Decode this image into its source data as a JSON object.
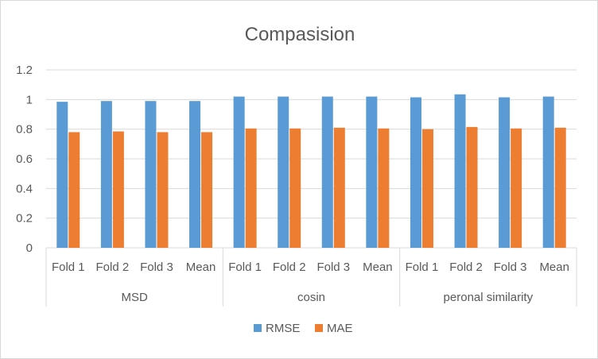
{
  "chart_data": {
    "type": "bar",
    "title": "Compasision",
    "xlabel": "",
    "ylabel": "",
    "ylim": [
      0,
      1.2
    ],
    "yticks": [
      "0",
      "0.2",
      "0.4",
      "0.6",
      "0.8",
      "1",
      "1.2"
    ],
    "grid": true,
    "legend": "bottom",
    "groups": [
      {
        "label": "MSD",
        "categories": [
          "Fold 1",
          "Fold 2",
          "Fold 3",
          "Mean"
        ]
      },
      {
        "label": "cosin",
        "categories": [
          "Fold 1",
          "Fold 2",
          "Fold 3",
          "Mean"
        ]
      },
      {
        "label": "peronal similarity",
        "categories": [
          "Fold 1",
          "Fold 2",
          "Fold 3",
          "Mean"
        ]
      }
    ],
    "series": [
      {
        "name": "RMSE",
        "color": "#5b9bd5",
        "values": [
          0.985,
          0.99,
          0.99,
          0.99,
          1.02,
          1.02,
          1.02,
          1.02,
          1.015,
          1.035,
          1.015,
          1.02
        ]
      },
      {
        "name": "MAE",
        "color": "#ed7d31",
        "values": [
          0.78,
          0.785,
          0.78,
          0.78,
          0.805,
          0.805,
          0.81,
          0.805,
          0.8,
          0.815,
          0.805,
          0.81
        ]
      }
    ]
  }
}
